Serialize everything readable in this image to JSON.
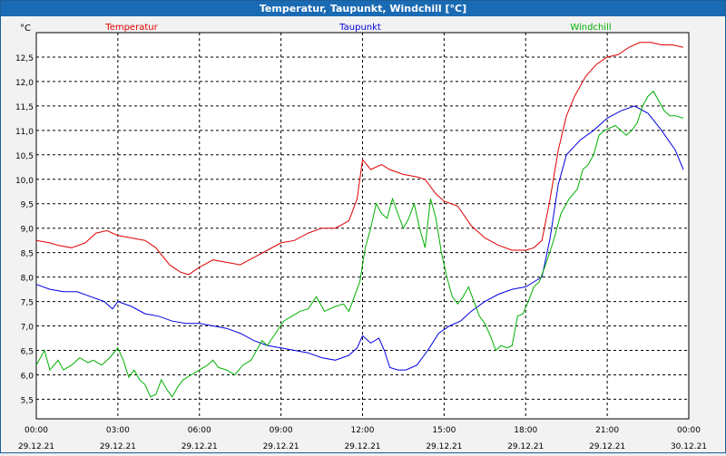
{
  "window": {
    "title": "Temperatur, Taupunkt, Windchill [°C]"
  },
  "chart_data": {
    "type": "line",
    "title": "Temperatur, Taupunkt, Windchill [°C]",
    "ylabel": "°C",
    "xlabel": "",
    "ylim": [
      5.1,
      13.0
    ],
    "xlim": [
      0,
      24
    ],
    "grid": true,
    "y_ticks": [
      5.5,
      6.0,
      6.5,
      7.0,
      7.5,
      8.0,
      8.5,
      9.0,
      9.5,
      10.0,
      10.5,
      11.0,
      11.5,
      12.0,
      12.5
    ],
    "y_tick_labels": [
      "5,5",
      "6,0",
      "6,5",
      "7,0",
      "7,5",
      "8,0",
      "8,5",
      "9,0",
      "9,5",
      "10,0",
      "10,5",
      "11,0",
      "11,5",
      "12,0",
      "12,5"
    ],
    "x_ticks": [
      0,
      3,
      6,
      9,
      12,
      15,
      18,
      21,
      24
    ],
    "x_tick_times": [
      "00:00",
      "03:00",
      "06:00",
      "09:00",
      "12:00",
      "15:00",
      "18:00",
      "21:00",
      "00:00"
    ],
    "x_tick_dates": [
      "29.12.21",
      "29.12.21",
      "29.12.21",
      "29.12.21",
      "29.12.21",
      "29.12.21",
      "29.12.21",
      "29.12.21",
      "30.12.21"
    ],
    "series": [
      {
        "name": "Temperatur",
        "color": "#e00000",
        "x": [
          0,
          0.5,
          0.8,
          1.3,
          1.8,
          2.2,
          2.6,
          3.0,
          3.5,
          4.0,
          4.4,
          4.9,
          5.3,
          5.6,
          6.0,
          6.5,
          7.0,
          7.5,
          8.0,
          8.5,
          9.0,
          9.5,
          10.0,
          10.5,
          11.0,
          11.5,
          11.8,
          12.0,
          12.3,
          12.7,
          13.0,
          13.5,
          14.0,
          14.3,
          14.7,
          15.0,
          15.5,
          16.0,
          16.5,
          17.0,
          17.5,
          18.0,
          18.3,
          18.6,
          18.9,
          19.2,
          19.5,
          19.8,
          20.2,
          20.6,
          21.0,
          21.4,
          21.8,
          22.2,
          22.6,
          23.0,
          23.4,
          23.8
        ],
        "values": [
          8.75,
          8.7,
          8.65,
          8.6,
          8.7,
          8.9,
          8.95,
          8.85,
          8.8,
          8.75,
          8.6,
          8.25,
          8.1,
          8.05,
          8.2,
          8.35,
          8.3,
          8.25,
          8.4,
          8.55,
          8.7,
          8.75,
          8.9,
          9.0,
          9.0,
          9.15,
          9.6,
          10.4,
          10.2,
          10.3,
          10.2,
          10.1,
          10.05,
          10.0,
          9.7,
          9.55,
          9.45,
          9.05,
          8.8,
          8.65,
          8.55,
          8.55,
          8.6,
          8.75,
          9.6,
          10.6,
          11.3,
          11.7,
          12.1,
          12.35,
          12.5,
          12.55,
          12.7,
          12.8,
          12.8,
          12.75,
          12.75,
          12.7
        ]
      },
      {
        "name": "Taupunkt",
        "color": "#0000e0",
        "x": [
          0,
          0.5,
          1.0,
          1.5,
          2.0,
          2.5,
          2.8,
          3.0,
          3.5,
          4.0,
          4.5,
          5.0,
          5.5,
          6.0,
          6.5,
          7.0,
          7.5,
          8.0,
          8.5,
          9.0,
          9.5,
          10.0,
          10.5,
          11.0,
          11.5,
          11.8,
          12.0,
          12.3,
          12.6,
          12.8,
          13.0,
          13.3,
          13.6,
          14.0,
          14.4,
          14.8,
          15.2,
          15.6,
          16.0,
          16.5,
          17.0,
          17.5,
          18.0,
          18.3,
          18.6,
          18.9,
          19.2,
          19.5,
          20.0,
          20.5,
          21.0,
          21.5,
          22.0,
          22.5,
          23.0,
          23.5,
          23.8
        ],
        "values": [
          7.85,
          7.75,
          7.7,
          7.7,
          7.6,
          7.5,
          7.35,
          7.5,
          7.4,
          7.25,
          7.2,
          7.1,
          7.05,
          7.05,
          7.0,
          6.95,
          6.85,
          6.7,
          6.6,
          6.55,
          6.5,
          6.45,
          6.35,
          6.3,
          6.4,
          6.55,
          6.8,
          6.65,
          6.75,
          6.5,
          6.15,
          6.1,
          6.1,
          6.2,
          6.5,
          6.85,
          7.0,
          7.1,
          7.3,
          7.5,
          7.65,
          7.75,
          7.8,
          7.9,
          8.0,
          8.8,
          9.9,
          10.5,
          10.8,
          11.0,
          11.25,
          11.4,
          11.5,
          11.35,
          11.0,
          10.6,
          10.2
        ]
      },
      {
        "name": "Windchill",
        "color": "#00b000",
        "x": [
          0,
          0.3,
          0.5,
          0.8,
          1.0,
          1.3,
          1.6,
          1.9,
          2.1,
          2.4,
          2.7,
          3.0,
          3.2,
          3.4,
          3.6,
          3.8,
          4.0,
          4.2,
          4.4,
          4.6,
          4.8,
          5.0,
          5.2,
          5.4,
          5.7,
          6.0,
          6.3,
          6.5,
          6.7,
          7.0,
          7.3,
          7.6,
          7.9,
          8.1,
          8.3,
          8.5,
          8.8,
          9.1,
          9.4,
          9.7,
          10.0,
          10.3,
          10.6,
          11.0,
          11.3,
          11.5,
          11.7,
          11.9,
          12.1,
          12.3,
          12.5,
          12.7,
          12.9,
          13.1,
          13.3,
          13.5,
          13.7,
          13.9,
          14.1,
          14.3,
          14.5,
          14.7,
          14.9,
          15.1,
          15.3,
          15.5,
          15.7,
          15.9,
          16.1,
          16.3,
          16.5,
          16.7,
          16.9,
          17.1,
          17.3,
          17.5,
          17.7,
          17.9,
          18.1,
          18.3,
          18.5,
          18.7,
          19.0,
          19.3,
          19.6,
          19.9,
          20.1,
          20.3,
          20.5,
          20.7,
          20.9,
          21.1,
          21.3,
          21.5,
          21.7,
          21.9,
          22.1,
          22.3,
          22.5,
          22.7,
          22.9,
          23.1,
          23.3,
          23.5,
          23.8
        ],
        "values": [
          6.2,
          6.5,
          6.1,
          6.3,
          6.1,
          6.2,
          6.35,
          6.25,
          6.3,
          6.2,
          6.35,
          6.55,
          6.3,
          5.95,
          6.1,
          5.9,
          5.8,
          5.55,
          5.6,
          5.9,
          5.7,
          5.55,
          5.75,
          5.9,
          6.0,
          6.1,
          6.2,
          6.3,
          6.15,
          6.1,
          6.0,
          6.2,
          6.3,
          6.5,
          6.7,
          6.6,
          6.85,
          7.1,
          7.2,
          7.3,
          7.35,
          7.6,
          7.3,
          7.4,
          7.45,
          7.3,
          7.6,
          7.9,
          8.6,
          9.0,
          9.5,
          9.3,
          9.2,
          9.6,
          9.3,
          9.0,
          9.2,
          9.5,
          9.0,
          8.6,
          9.6,
          9.2,
          8.5,
          8.0,
          7.6,
          7.45,
          7.6,
          7.8,
          7.5,
          7.2,
          7.05,
          6.8,
          6.5,
          6.6,
          6.55,
          6.6,
          7.2,
          7.25,
          7.5,
          7.8,
          7.9,
          8.2,
          8.7,
          9.3,
          9.6,
          9.8,
          10.2,
          10.3,
          10.5,
          10.9,
          11.0,
          11.05,
          11.1,
          11.0,
          10.9,
          11.0,
          11.15,
          11.5,
          11.7,
          11.8,
          11.6,
          11.4,
          11.3,
          11.3,
          11.25
        ]
      }
    ]
  }
}
